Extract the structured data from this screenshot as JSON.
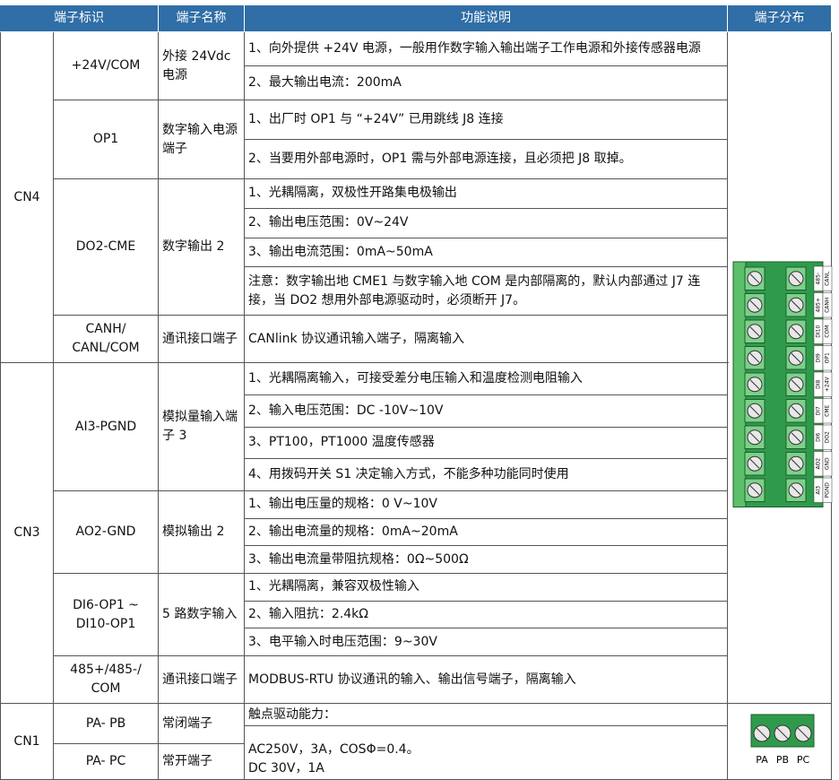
{
  "header": [
    "端子标识",
    "端子名称",
    "功能说明",
    "端子分布"
  ],
  "groups": [
    {
      "label": "CN4",
      "rows": [
        {
          "id": "+24V/COM",
          "name": "外接 24Vdc 电源",
          "desc": [
            "1、向外提供 +24V 电源，一般用作数字输入输出端子工作电源和外接传感器电源",
            "2、最大输出电流：200mA"
          ]
        },
        {
          "id": "OP1",
          "name": "数字输入电源端子",
          "desc": [
            "1、出厂时 OP1 与 “+24V” 已用跳线 J8 连接",
            "2、当要用外部电源时，OP1 需与外部电源连接，且必须把 J8 取掉。"
          ]
        },
        {
          "id": "DO2-CME",
          "name": "数字输出 2",
          "desc": [
            "1、光耦隔离，双极性开路集电极输出",
            "2、输出电压范围：0V~24V",
            "3、输出电流范围：0mA~50mA",
            "注意：数字输出地 CME1 与数字输入地 COM 是内部隔离的，默认内部通过 J7 连接，当 DO2 想用外部电源驱动时，必须断开 J7。"
          ]
        },
        {
          "id": "CANH/ CANL/COM",
          "name": "通讯接口端子",
          "desc": [
            "CANlink 协议通讯输入端子，隔离输入"
          ]
        }
      ]
    },
    {
      "label": "CN3",
      "rows": [
        {
          "id": "AI3-PGND",
          "name": "模拟量输入端子 3",
          "desc": [
            "1、光耦隔离输入，可接受差分电压输入和温度检测电阻输入",
            "2、输入电压范围：DC -10V~10V",
            "3、PT100，PT1000 温度传感器",
            "4、用拨码开关 S1 决定输入方式，不能多种功能同时使用"
          ]
        },
        {
          "id": "AO2-GND",
          "name": "模拟输出 2",
          "desc": [
            "1、输出电压量的规格：0 V~10V",
            "2、输出电流量的规格：0mA~20mA",
            "3、输出电流量带阻抗规格：0Ω~500Ω"
          ]
        },
        {
          "id": "DI6-OP1 ~ DI10-OP1",
          "name": "5 路数字输入",
          "desc": [
            "1、光耦隔离，兼容双极性输入",
            "2、输入阻抗：2.4kΩ",
            "3、电平输入时电压范围：9~30V"
          ]
        },
        {
          "id": "485+/485-/ COM",
          "name": "通讯接口端子",
          "desc": [
            "MODBUS-RTU 协议通讯的输入、输出信号端子，隔离输入"
          ]
        }
      ]
    },
    {
      "label": "CN1",
      "rows": [
        {
          "id": "PA- PB",
          "name": "常闭端子"
        },
        {
          "id": "PA- PC",
          "name": "常开端子"
        }
      ],
      "desc": [
        "触点驱动能力：",
        "AC250V，3A，COSΦ=0.4。",
        "DC 30V，1A"
      ]
    }
  ],
  "terminals_cn34": [
    [
      "485-",
      "CANL"
    ],
    [
      "485+",
      "CANH"
    ],
    [
      "DI10",
      "COM"
    ],
    [
      "DI9",
      "OP1"
    ],
    [
      "DI8",
      "+24V"
    ],
    [
      "DI7",
      "CME"
    ],
    [
      "DI6",
      "DO2"
    ],
    [
      "AO2",
      "GND"
    ],
    [
      "AI3",
      "PGND"
    ]
  ],
  "terminals_cn1": [
    "PA",
    "PB",
    "PC"
  ]
}
